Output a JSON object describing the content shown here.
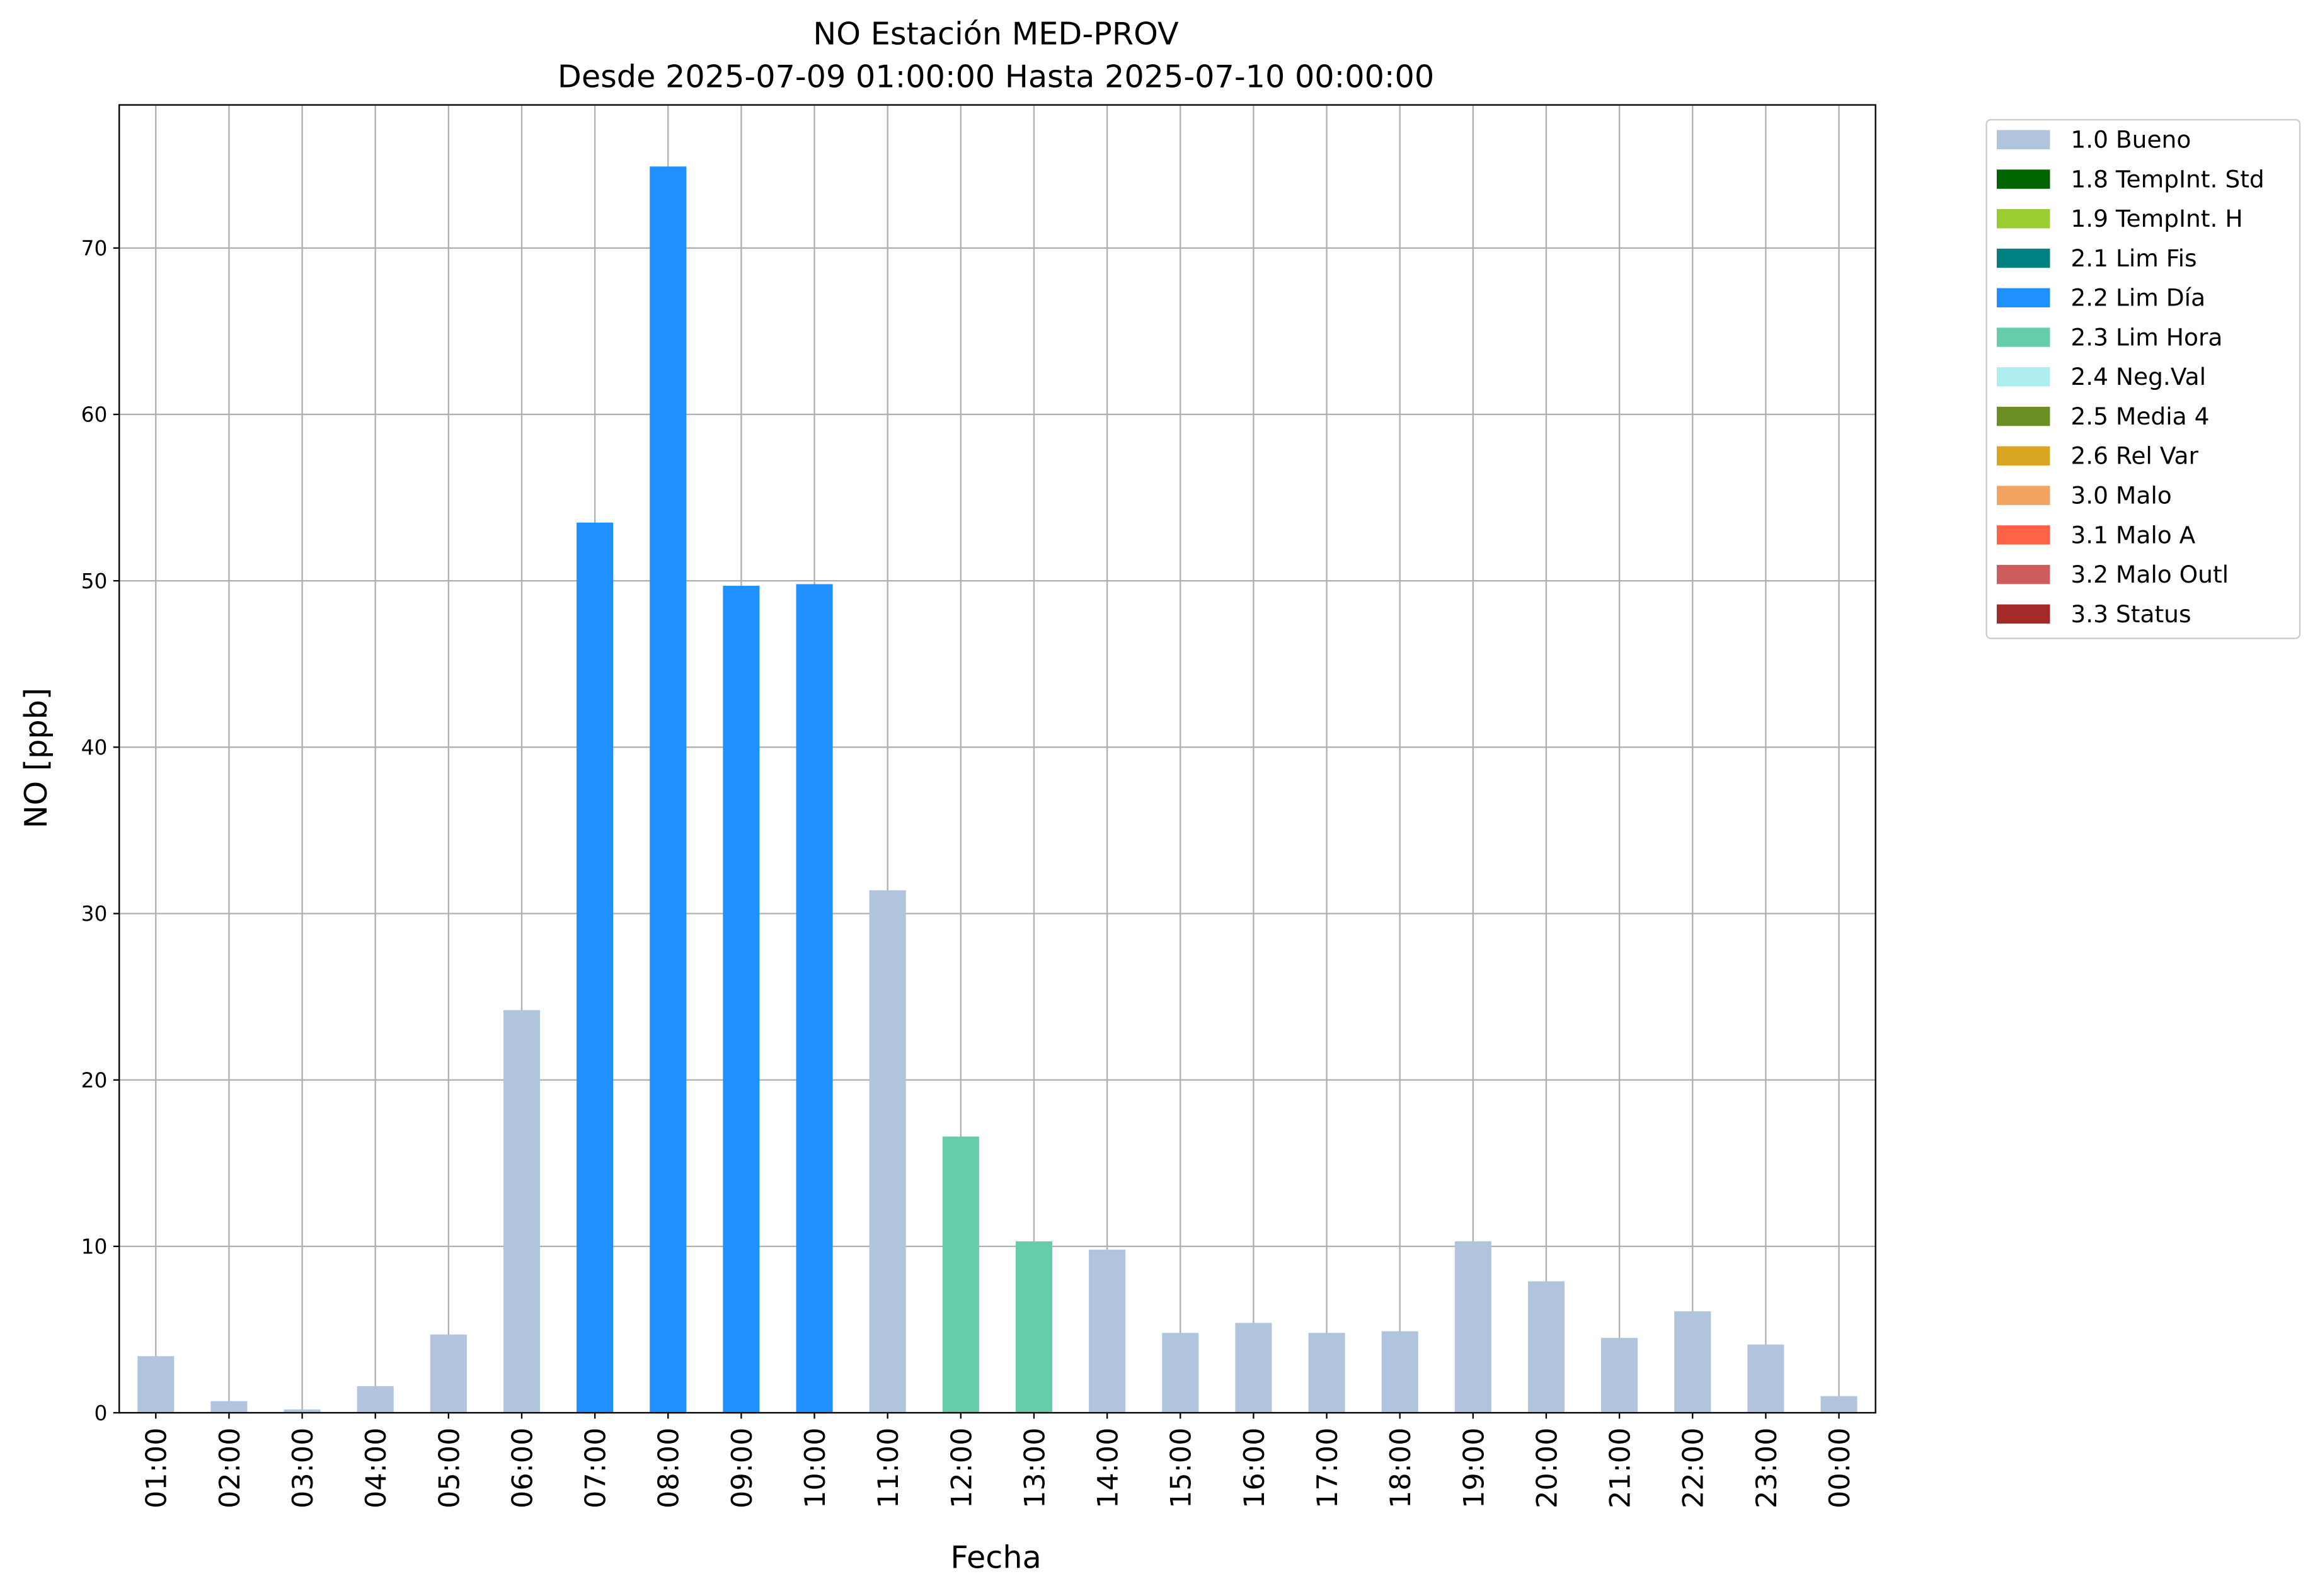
{
  "chart_data": {
    "type": "bar",
    "stacked": true,
    "title": "NO Estación MED-PROV",
    "subtitle": "Desde 2025-07-09 01:00:00 Hasta 2025-07-10 00:00:00",
    "x_label": "Fecha",
    "y_label": "NO [ppb]",
    "categories": [
      "01:00",
      "02:00",
      "03:00",
      "04:00",
      "05:00",
      "06:00",
      "07:00",
      "08:00",
      "09:00",
      "10:00",
      "11:00",
      "12:00",
      "13:00",
      "14:00",
      "15:00",
      "16:00",
      "17:00",
      "18:00",
      "19:00",
      "20:00",
      "21:00",
      "22:00",
      "23:00",
      "00:00"
    ],
    "series": [
      {
        "name": "1.0 Bueno",
        "color": "#b0c4de",
        "values": [
          3.4,
          0.7,
          0.2,
          1.6,
          4.7,
          24.2,
          null,
          null,
          null,
          null,
          31.4,
          null,
          null,
          9.8,
          4.8,
          5.4,
          4.8,
          4.9,
          10.3,
          7.9,
          4.5,
          6.1,
          4.1,
          1.0
        ]
      },
      {
        "name": "1.8 TempInt. Std",
        "color": "#006400",
        "values": [
          null,
          null,
          null,
          null,
          null,
          null,
          null,
          null,
          null,
          null,
          null,
          null,
          null,
          null,
          null,
          null,
          null,
          null,
          null,
          null,
          null,
          null,
          null,
          null
        ]
      },
      {
        "name": "1.9 TempInt. H",
        "color": "#9acd32",
        "values": [
          null,
          null,
          null,
          null,
          null,
          null,
          null,
          null,
          null,
          null,
          null,
          null,
          null,
          null,
          null,
          null,
          null,
          null,
          null,
          null,
          null,
          null,
          null,
          null
        ]
      },
      {
        "name": "2.1 Lim Fis",
        "color": "#008080",
        "values": [
          null,
          null,
          null,
          null,
          null,
          null,
          null,
          null,
          null,
          null,
          null,
          null,
          null,
          null,
          null,
          null,
          null,
          null,
          null,
          null,
          null,
          null,
          null,
          null
        ]
      },
      {
        "name": "2.2 Lim Día",
        "color": "#1e90ff",
        "values": [
          null,
          null,
          null,
          null,
          null,
          null,
          53.5,
          74.9,
          49.7,
          49.8,
          null,
          null,
          null,
          null,
          null,
          null,
          null,
          null,
          null,
          null,
          null,
          null,
          null,
          null
        ]
      },
      {
        "name": "2.3 Lim Hora",
        "color": "#66cdaa",
        "values": [
          null,
          null,
          null,
          null,
          null,
          null,
          null,
          null,
          null,
          null,
          null,
          16.6,
          10.3,
          null,
          null,
          null,
          null,
          null,
          null,
          null,
          null,
          null,
          null,
          null
        ]
      },
      {
        "name": "2.4 Neg.Val",
        "color": "#afeeee",
        "values": [
          null,
          null,
          null,
          null,
          null,
          null,
          null,
          null,
          null,
          null,
          null,
          null,
          null,
          null,
          null,
          null,
          null,
          null,
          null,
          null,
          null,
          null,
          null,
          null
        ]
      },
      {
        "name": "2.5 Media 4",
        "color": "#6b8e23",
        "values": [
          null,
          null,
          null,
          null,
          null,
          null,
          null,
          null,
          null,
          null,
          null,
          null,
          null,
          null,
          null,
          null,
          null,
          null,
          null,
          null,
          null,
          null,
          null,
          null
        ]
      },
      {
        "name": "2.6 Rel Var",
        "color": "#daa520",
        "values": [
          null,
          null,
          null,
          null,
          null,
          null,
          null,
          null,
          null,
          null,
          null,
          null,
          null,
          null,
          null,
          null,
          null,
          null,
          null,
          null,
          null,
          null,
          null,
          null
        ]
      },
      {
        "name": "3.0 Malo",
        "color": "#f4a460",
        "values": [
          null,
          null,
          null,
          null,
          null,
          null,
          null,
          null,
          null,
          null,
          null,
          null,
          null,
          null,
          null,
          null,
          null,
          null,
          null,
          null,
          null,
          null,
          null,
          null
        ]
      },
      {
        "name": "3.1 Malo A",
        "color": "#ff6347",
        "values": [
          null,
          null,
          null,
          null,
          null,
          null,
          null,
          null,
          null,
          null,
          null,
          null,
          null,
          null,
          null,
          null,
          null,
          null,
          null,
          null,
          null,
          null,
          null,
          null
        ]
      },
      {
        "name": "3.2 Malo Outl",
        "color": "#cd5c5c",
        "values": [
          null,
          null,
          null,
          null,
          null,
          null,
          null,
          null,
          null,
          null,
          null,
          null,
          null,
          null,
          null,
          null,
          null,
          null,
          null,
          null,
          null,
          null,
          null,
          null
        ]
      },
      {
        "name": "3.3 Status",
        "color": "#a52a2a",
        "values": [
          null,
          null,
          null,
          null,
          null,
          null,
          null,
          null,
          null,
          null,
          null,
          null,
          null,
          null,
          null,
          null,
          null,
          null,
          null,
          null,
          null,
          null,
          null,
          null
        ]
      }
    ],
    "ylim": [
      0,
      78.6
    ],
    "yticks": [
      0,
      10,
      20,
      30,
      40,
      50,
      60,
      70
    ],
    "grid": true,
    "legend": "outside-upper-right"
  }
}
